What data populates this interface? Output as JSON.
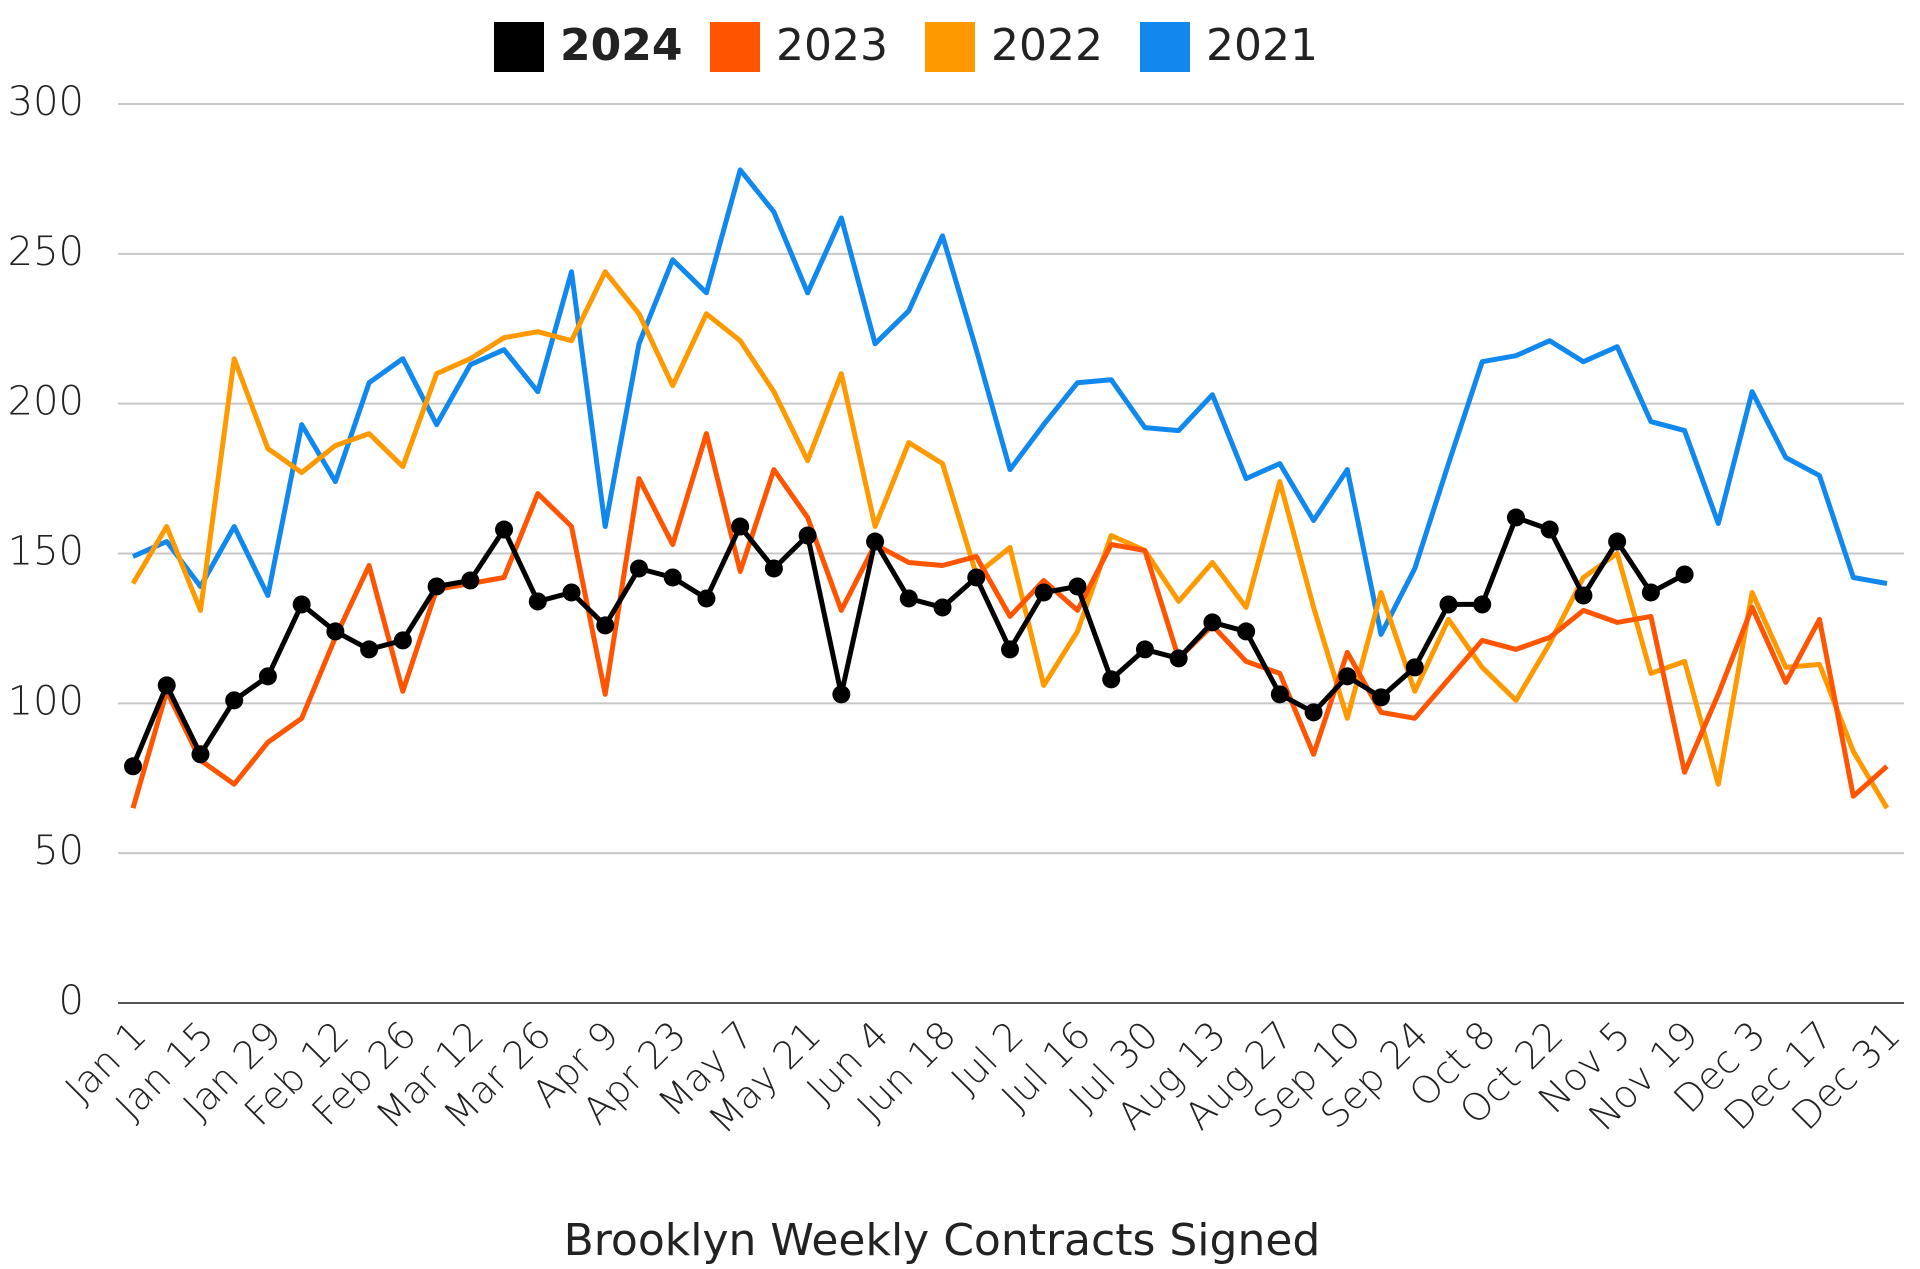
{
  "chart_data": {
    "type": "line",
    "title": "Brooklyn Weekly Contracts Signed",
    "categories": [
      "Jan 1",
      null,
      "Jan 15",
      null,
      "Jan 29",
      null,
      "Feb 12",
      null,
      "Feb 26",
      null,
      "Mar 12",
      null,
      "Mar 26",
      null,
      "Apr 9",
      null,
      "Apr 23",
      null,
      "May 7",
      null,
      "May 21",
      null,
      "Jun 4",
      null,
      "Jun 18",
      null,
      "Jul 2",
      null,
      "Jul 16",
      null,
      "Jul 30",
      null,
      "Aug 13",
      null,
      "Aug 27",
      null,
      "Sep 10",
      null,
      "Sep 24",
      null,
      "Oct 8",
      null,
      "Oct 22",
      null,
      "Nov 5",
      null,
      "Nov 19",
      null,
      "Dec 3",
      null,
      "Dec 17",
      null,
      "Dec 31"
    ],
    "series": [
      {
        "name": "2024",
        "color": "#000000",
        "markers": true,
        "values": [
          79,
          106,
          83,
          101,
          109,
          133,
          124,
          118,
          121,
          139,
          141,
          158,
          134,
          137,
          126,
          145,
          142,
          135,
          159,
          145,
          156,
          103,
          154,
          135,
          132,
          142,
          118,
          137,
          139,
          108,
          118,
          115,
          127,
          124,
          103,
          97,
          109,
          102,
          112,
          133,
          133,
          162,
          158,
          136,
          154,
          137,
          143,
          null,
          null,
          null,
          null,
          null,
          null
        ]
      },
      {
        "name": "2023",
        "color": "#ff5500",
        "markers": false,
        "values": [
          65,
          104,
          81,
          73,
          87,
          95,
          122,
          146,
          104,
          138,
          140,
          142,
          170,
          159,
          103,
          175,
          153,
          190,
          144,
          178,
          162,
          131,
          153,
          147,
          146,
          149,
          129,
          141,
          131,
          153,
          151,
          115,
          126,
          114,
          110,
          83,
          117,
          97,
          95,
          108,
          121,
          118,
          122,
          131,
          127,
          129,
          77,
          103,
          132,
          107,
          128,
          69,
          79
        ]
      },
      {
        "name": "2022",
        "color": "#ff9900",
        "markers": false,
        "values": [
          140,
          159,
          131,
          215,
          185,
          177,
          186,
          190,
          179,
          210,
          215,
          222,
          224,
          221,
          244,
          230,
          206,
          230,
          221,
          204,
          181,
          210,
          159,
          187,
          180,
          143,
          152,
          106,
          124,
          156,
          151,
          134,
          147,
          132,
          174,
          132,
          95,
          137,
          104,
          128,
          112,
          101,
          120,
          142,
          150,
          110,
          114,
          73,
          137,
          112,
          113,
          84,
          65
        ]
      },
      {
        "name": "2021",
        "color": "#1188ee",
        "markers": false,
        "values": [
          149,
          154,
          139,
          159,
          136,
          193,
          174,
          207,
          215,
          193,
          213,
          218,
          204,
          244,
          159,
          220,
          248,
          237,
          278,
          264,
          237,
          262,
          220,
          231,
          256,
          218,
          178,
          193,
          207,
          208,
          192,
          191,
          203,
          175,
          180,
          161,
          178,
          123,
          145,
          180,
          214,
          216,
          221,
          214,
          219,
          194,
          191,
          160,
          204,
          182,
          176,
          142,
          140
        ]
      }
    ],
    "ylim": [
      0,
      300
    ],
    "yticks": [
      0,
      50,
      100,
      150,
      200,
      250,
      300
    ],
    "grid": true
  }
}
